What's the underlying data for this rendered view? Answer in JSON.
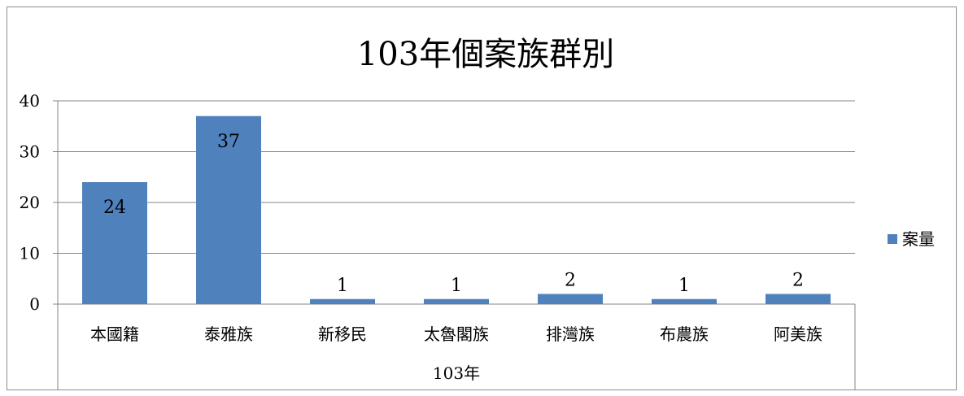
{
  "chart_data": {
    "type": "bar",
    "title": "103年個案族群別",
    "categories": [
      "本國籍",
      "泰雅族",
      "新移民",
      "太魯閣族",
      "排灣族",
      "布農族",
      "阿美族"
    ],
    "group_label": "103年",
    "series": [
      {
        "name": "案量",
        "values": [
          24,
          37,
          1,
          1,
          2,
          1,
          2
        ],
        "color": "#4f81bd"
      }
    ],
    "ylim": [
      0,
      40
    ],
    "yticks": [
      0,
      10,
      20,
      30,
      40
    ],
    "grid": true,
    "legend_position": "right",
    "data_labels": true
  }
}
